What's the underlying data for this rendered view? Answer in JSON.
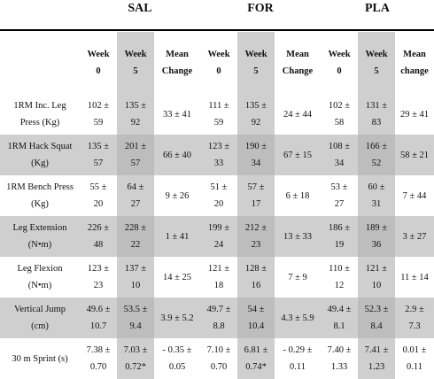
{
  "groups": [
    "SAL",
    "FOR",
    "PLA"
  ],
  "headers": {
    "week0": [
      "Week",
      "0"
    ],
    "week5": [
      "Week",
      "5"
    ],
    "mean_change": [
      "Mean",
      "Change"
    ],
    "mean_change_pla": [
      "Mean",
      "change"
    ]
  },
  "rows": [
    {
      "label": [
        "1RM Inc. Leg",
        "Press (Kg)"
      ],
      "shaded": false,
      "sal": [
        [
          "102 ±",
          "59"
        ],
        [
          "135 ±",
          "92"
        ],
        [
          "33 ± 41"
        ]
      ],
      "for": [
        [
          "111 ±",
          "59"
        ],
        [
          "135 ±",
          "92"
        ],
        [
          "24 ± 44"
        ]
      ],
      "pla": [
        [
          "102 ±",
          "58"
        ],
        [
          "131 ±",
          "83"
        ],
        [
          "29 ± 41"
        ]
      ]
    },
    {
      "label": [
        "1RM Hack Squat",
        "(Kg)"
      ],
      "shaded": true,
      "sal": [
        [
          "135 ±",
          "57"
        ],
        [
          "201 ±",
          "57"
        ],
        [
          "66 ± 40"
        ]
      ],
      "for": [
        [
          "123 ±",
          "33"
        ],
        [
          "190 ±",
          "34"
        ],
        [
          "67 ± 15"
        ]
      ],
      "pla": [
        [
          "108 ±",
          "34"
        ],
        [
          "166 ±",
          "52"
        ],
        [
          "58 ± 21"
        ]
      ]
    },
    {
      "label": [
        "1RM Bench Press",
        "(Kg)"
      ],
      "shaded": false,
      "sal": [
        [
          "55 ±",
          "20"
        ],
        [
          "64 ±",
          "27"
        ],
        [
          "9 ± 26"
        ]
      ],
      "for": [
        [
          "51 ±",
          "20"
        ],
        [
          "57 ±",
          "17"
        ],
        [
          "6 ± 18"
        ]
      ],
      "pla": [
        [
          "53 ±",
          "27"
        ],
        [
          "60 ±",
          "31"
        ],
        [
          "7 ± 44"
        ]
      ]
    },
    {
      "label": [
        "Leg Extension",
        "(N•m)"
      ],
      "shaded": true,
      "sal": [
        [
          "226 ±",
          "48"
        ],
        [
          "228 ±",
          "22"
        ],
        [
          "1 ± 41"
        ]
      ],
      "for": [
        [
          "199 ±",
          "24"
        ],
        [
          "212 ±",
          "23"
        ],
        [
          "13 ± 33"
        ]
      ],
      "pla": [
        [
          "186 ±",
          "19"
        ],
        [
          "189 ±",
          "36"
        ],
        [
          "3 ± 27"
        ]
      ]
    },
    {
      "label": [
        "Leg Flexion",
        "(N•m)"
      ],
      "shaded": false,
      "sal": [
        [
          "123 ±",
          "23"
        ],
        [
          "137 ±",
          "10"
        ],
        [
          "14 ± 25"
        ]
      ],
      "for": [
        [
          "121 ±",
          "18"
        ],
        [
          "128 ±",
          "16"
        ],
        [
          "7 ± 9"
        ]
      ],
      "pla": [
        [
          "110 ±",
          "12"
        ],
        [
          "121 ±",
          "10"
        ],
        [
          "11 ± 14"
        ]
      ]
    },
    {
      "label": [
        "Vertical Jump",
        "(cm)"
      ],
      "shaded": true,
      "sal": [
        [
          "49.6 ±",
          "10.7"
        ],
        [
          "53.5 ±",
          "9.4"
        ],
        [
          "3.9 ± 5.2"
        ]
      ],
      "for": [
        [
          "49.7 ±",
          "8.8"
        ],
        [
          "54 ±",
          "10.4"
        ],
        [
          "4.3 ± 5.9"
        ]
      ],
      "pla": [
        [
          "49.4 ±",
          "8.1"
        ],
        [
          "52.3 ±",
          "8.4"
        ],
        [
          "2.9 ±",
          "7.3"
        ]
      ]
    },
    {
      "label": [
        "30 m Sprint (s)"
      ],
      "shaded": false,
      "sal": [
        [
          "7.38 ±",
          "0.70"
        ],
        [
          "7.03 ±",
          "0.72*"
        ],
        [
          "- 0.35 ±",
          "0.05"
        ]
      ],
      "for": [
        [
          "7.10 ±",
          "0.70"
        ],
        [
          "6.81 ±",
          "0.74*"
        ],
        [
          "- 0.29 ±",
          "0.11"
        ]
      ],
      "pla": [
        [
          "7.40 ±",
          "1.33"
        ],
        [
          "7.41 ±",
          "1.23"
        ],
        [
          "0.01 ±",
          "0.11"
        ]
      ]
    }
  ]
}
